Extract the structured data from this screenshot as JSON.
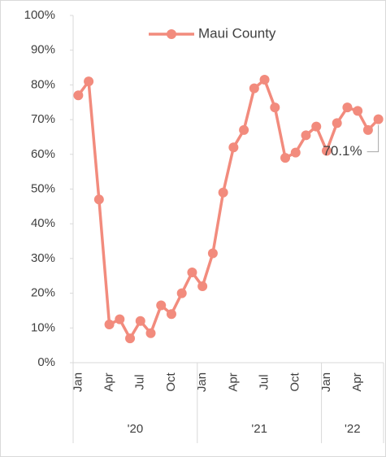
{
  "chart_data": {
    "type": "line",
    "categories": [
      "Jan",
      null,
      null,
      "Apr",
      null,
      null,
      "Jul",
      null,
      null,
      "Oct",
      null,
      null,
      "Jan",
      null,
      null,
      "Apr",
      null,
      null,
      "Jul",
      null,
      null,
      "Oct",
      null,
      null,
      "Jan",
      null,
      null,
      "Apr",
      null,
      null
    ],
    "groups": [
      {
        "label": "'20",
        "count": 12
      },
      {
        "label": "'21",
        "count": 12
      },
      {
        "label": "'22",
        "count": 6
      }
    ],
    "series": [
      {
        "name": "Maui County",
        "color": "#f28b7d",
        "values": [
          77,
          81,
          47,
          11,
          12.5,
          7,
          12,
          8.5,
          16.5,
          14,
          20,
          26,
          22,
          31.5,
          49,
          62,
          67,
          79,
          81.5,
          73.5,
          59,
          60.5,
          65.5,
          68,
          61,
          69,
          73.5,
          72.5,
          67,
          70.1
        ],
        "value_labels": [
          null,
          null,
          null,
          null,
          null,
          null,
          null,
          null,
          null,
          null,
          null,
          null,
          null,
          null,
          null,
          null,
          null,
          null,
          null,
          null,
          null,
          null,
          null,
          null,
          null,
          null,
          null,
          null,
          null,
          "70.1%"
        ]
      }
    ],
    "ylim": [
      0,
      100
    ],
    "yticks": [
      {
        "value": 0,
        "label": "0%"
      },
      {
        "value": 10,
        "label": "10%"
      },
      {
        "value": 20,
        "label": "20%"
      },
      {
        "value": 30,
        "label": "30%"
      },
      {
        "value": 40,
        "label": "40%"
      },
      {
        "value": 50,
        "label": "50%"
      },
      {
        "value": 60,
        "label": "60%"
      },
      {
        "value": 70,
        "label": "70%"
      },
      {
        "value": 80,
        "label": "80%"
      },
      {
        "value": 90,
        "label": "90%"
      },
      {
        "value": 100,
        "label": "100%"
      }
    ],
    "legend": "top"
  }
}
